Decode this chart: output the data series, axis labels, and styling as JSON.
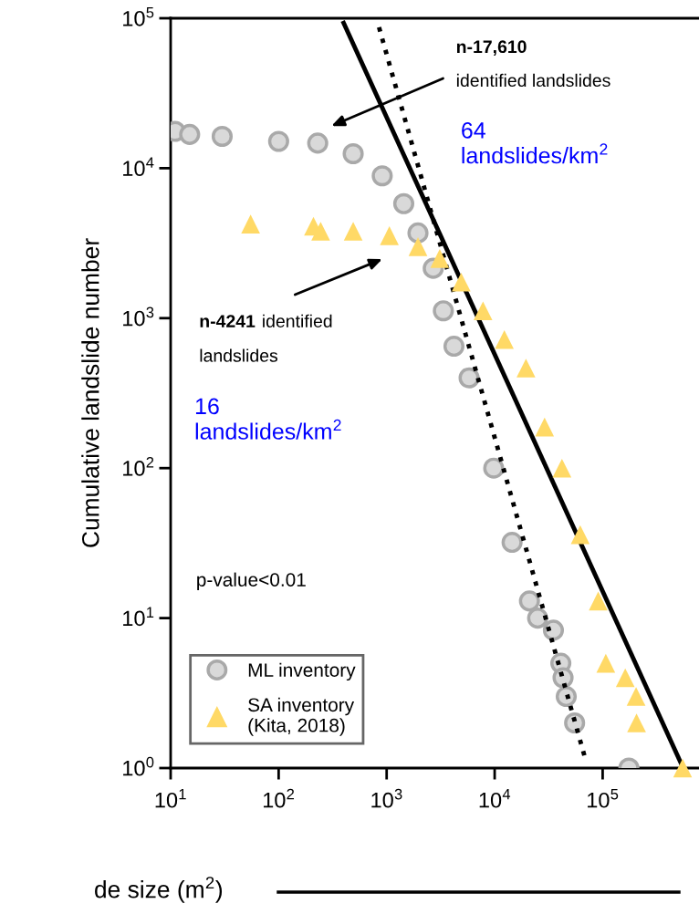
{
  "chart_data": {
    "type": "scatter",
    "xlabel": "de size (m$^{2}$)",
    "ylabel": "Cumulative landslide number",
    "log": "xy",
    "xlim": [
      10,
      780000
    ],
    "ylim": [
      1,
      100000
    ],
    "xticks": [
      {
        "value": 10,
        "label": "10$^{1}$"
      },
      {
        "value": 100,
        "label": "10$^{2}$"
      },
      {
        "value": 1000,
        "label": "10$^{3}$"
      },
      {
        "value": 10000,
        "label": "10$^{4}$"
      },
      {
        "value": 100000,
        "label": "10$^{5}$"
      }
    ],
    "yticks": [
      {
        "value": 1,
        "label": "10$^{0}$"
      },
      {
        "value": 10,
        "label": "10$^{1}$"
      },
      {
        "value": 100,
        "label": "10$^{2}$"
      },
      {
        "value": 1000,
        "label": "10$^{3}$"
      },
      {
        "value": 10000,
        "label": "10$^{4}$"
      },
      {
        "value": 100000,
        "label": "10$^{5}$"
      }
    ],
    "legend": "bottom left",
    "series": [
      {
        "name": "ML inventory",
        "marker": "circle",
        "color": "#d9d9d9",
        "x": [
          11,
          15,
          30,
          100,
          230,
          490,
          910,
          1440,
          1950,
          2700,
          3350,
          4200,
          5800,
          9800,
          14500,
          21000,
          25000,
          35000,
          41000,
          43000,
          46000,
          55000,
          175000
        ],
        "values": [
          17610,
          16800,
          16300,
          15100,
          14700,
          12500,
          8900,
          5800,
          3700,
          2150,
          1120,
          650,
          400,
          100,
          32,
          13,
          10,
          8.3,
          5,
          4,
          3,
          2,
          1
        ]
      },
      {
        "name": "SA inventory\n(Kita, 2018)",
        "marker": "triangle",
        "color": "#ffd966",
        "x": [
          55,
          210,
          245,
          490,
          1060,
          1950,
          3100,
          4900,
          7800,
          12300,
          19500,
          29000,
          42000,
          62000,
          91000,
          107000,
          162000,
          204000,
          206000,
          550000
        ],
        "values": [
          4241,
          4100,
          3800,
          3800,
          3550,
          3000,
          2500,
          1740,
          1120,
          720,
          465,
          188,
          100,
          36,
          13,
          5,
          4,
          3,
          2,
          1
        ]
      },
      {
        "type": "line",
        "marker": "none",
        "line_style": "solid",
        "color": "#000000",
        "x": [
          400,
          540000
        ],
        "values": [
          93000,
          1.05
        ]
      },
      {
        "type": "line",
        "marker": "none",
        "line_style": "dotted",
        "color": "#000000",
        "x": [
          850,
          68000
        ],
        "values": [
          87000,
          1.2
        ]
      }
    ],
    "annotations": [
      "n-17,610",
      "identified landslides",
      "64\nlandslides/km$^{2}$",
      "n-4241",
      "identified",
      "landslides",
      "16\nlandslides/km$^{2}$",
      "p-value<0.01"
    ]
  }
}
